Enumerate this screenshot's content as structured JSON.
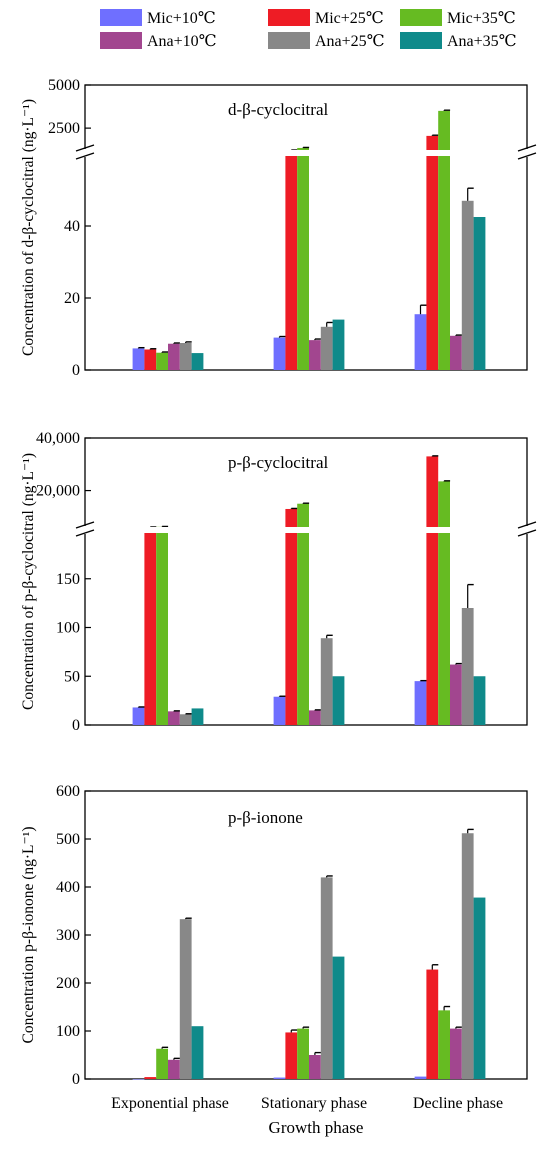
{
  "legend": [
    {
      "name": "Mic+10℃",
      "color": "#6f6fff"
    },
    {
      "name": "Mic+25℃",
      "color": "#ee1c25"
    },
    {
      "name": "Mic+35℃",
      "color": "#66bb22"
    },
    {
      "name": "Ana+10℃",
      "color": "#a2468f"
    },
    {
      "name": "Ana+25℃",
      "color": "#888888"
    },
    {
      "name": "Ana+35℃",
      "color": "#0f8a8a"
    }
  ],
  "chart_data": [
    {
      "type": "bar",
      "title": "d-β-cyclocitral",
      "ylabel": "Concentration of  d-β-cyclocitral (ng·L⁻¹)",
      "categories": [
        "Exponential phase",
        "Stationary phase",
        "Decline phase"
      ],
      "broken_axis": {
        "lower_ylim": [
          0,
          60
        ],
        "upper_ylim": [
          1000,
          5000
        ]
      },
      "lower_ticks": [
        "0",
        "20",
        "40"
      ],
      "upper_ticks": [
        "2500",
        "5000"
      ],
      "series": [
        {
          "name": "Mic+10℃",
          "values": [
            6,
            9,
            15.5
          ],
          "errors": [
            0.2,
            0.3,
            2.5
          ]
        },
        {
          "name": "Mic+25℃",
          "values": [
            5.7,
            1200,
            2050
          ],
          "errors": [
            0.2,
            30,
            40
          ]
        },
        {
          "name": "Mic+35℃",
          "values": [
            4.8,
            1350,
            3500
          ],
          "errors": [
            0.2,
            30,
            40
          ]
        },
        {
          "name": "Ana+10℃",
          "values": [
            7.3,
            8.3,
            9.5
          ],
          "errors": [
            0.2,
            0.3,
            0.2
          ]
        },
        {
          "name": "Ana+25℃",
          "values": [
            7.5,
            12,
            47
          ],
          "errors": [
            0.3,
            1.2,
            3.5
          ]
        },
        {
          "name": "Ana+35℃",
          "values": [
            4.7,
            14,
            42.5
          ],
          "errors": [
            0,
            0,
            0
          ]
        }
      ]
    },
    {
      "type": "bar",
      "title": "p-β-cyclocitral",
      "ylabel": "Concentration of p-β-cyclocitral (ng·L⁻¹)",
      "categories": [
        "Exponential phase",
        "Stationary phase",
        "Decline phase"
      ],
      "broken_axis": {
        "lower_ylim": [
          0,
          200
        ],
        "upper_ylim": [
          5000,
          40000
        ]
      },
      "lower_ticks": [
        "0",
        "50",
        "100",
        "150"
      ],
      "upper_ticks": [
        "20,000",
        "40,000"
      ],
      "series": [
        {
          "name": "Mic+10℃",
          "values": [
            18,
            29,
            45
          ],
          "errors": [
            0.5,
            0.5,
            0.5
          ]
        },
        {
          "name": "Mic+25℃",
          "values": [
            6000,
            13000,
            33000
          ],
          "errors": [
            150,
            200,
            200
          ]
        },
        {
          "name": "Mic+35℃",
          "values": [
            6200,
            15000,
            23500
          ],
          "errors": [
            150,
            200,
            200
          ]
        },
        {
          "name": "Ana+10℃",
          "values": [
            14,
            15,
            62
          ],
          "errors": [
            0.5,
            0.5,
            1
          ]
        },
        {
          "name": "Ana+25℃",
          "values": [
            11,
            89,
            120
          ],
          "errors": [
            0.5,
            3,
            24
          ]
        },
        {
          "name": "Ana+35℃",
          "values": [
            17,
            50,
            50
          ],
          "errors": [
            0,
            0,
            0
          ]
        }
      ]
    },
    {
      "type": "bar",
      "title": "p-β-ionone",
      "ylabel": "Concentration p-β-ionone (ng·L⁻¹)",
      "xlabel": "Growth phase",
      "categories": [
        "Exponential phase",
        "Stationary phase",
        "Decline phase"
      ],
      "ylim": [
        0,
        600
      ],
      "ticks": [
        "0",
        "100",
        "200",
        "300",
        "400",
        "500",
        "600"
      ],
      "series": [
        {
          "name": "Mic+10℃",
          "values": [
            0,
            3,
            5
          ],
          "errors": [
            0,
            0,
            0
          ]
        },
        {
          "name": "Mic+25℃",
          "values": [
            4,
            97,
            228
          ],
          "errors": [
            0,
            5,
            10
          ]
        },
        {
          "name": "Mic+35℃",
          "values": [
            63,
            105,
            143
          ],
          "errors": [
            3,
            3,
            8
          ]
        },
        {
          "name": "Ana+10℃",
          "values": [
            40,
            50,
            105
          ],
          "errors": [
            3,
            5,
            3
          ]
        },
        {
          "name": "Ana+25℃",
          "values": [
            333,
            420,
            512
          ],
          "errors": [
            2,
            3,
            8
          ]
        },
        {
          "name": "Ana+35℃",
          "values": [
            110,
            255,
            378
          ],
          "errors": [
            0,
            0,
            0
          ]
        }
      ]
    }
  ]
}
